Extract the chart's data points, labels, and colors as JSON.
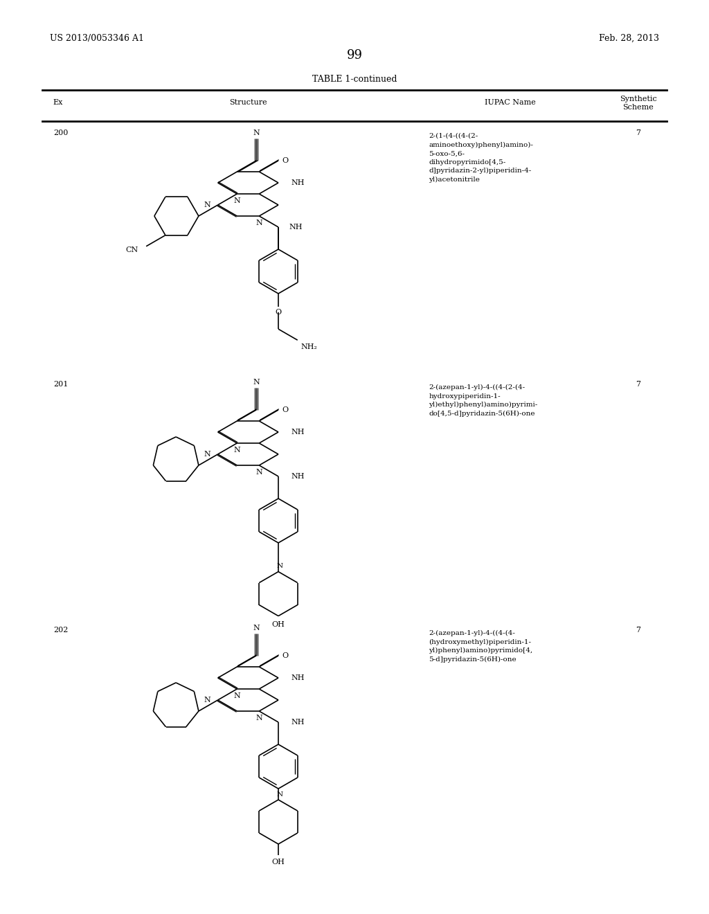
{
  "title": "TABLE 1-continued",
  "page_number": "99",
  "patent_left": "US 2013/0053346 A1",
  "patent_right": "Feb. 28, 2013",
  "background_color": "#ffffff",
  "text_color": "#000000",
  "rows": [
    {
      "ex": "200",
      "iupac": "2-(1-(4-((4-(2-\naminoethoxy)phenyl)amino)-\n5-oxo-5,6-\ndihydropyrimido[4,5-\nd]pyridazin-2-yl)piperidin-4-\nyl)acetonitrile",
      "scheme": "7"
    },
    {
      "ex": "201",
      "iupac": "2-(azepan-1-yl)-4-((4-(2-(4-\nhydroxypiperidin-1-\nyl)ethyl)phenyl)amino)pyrimi-\ndo[4,5-d]pyridazin-5(6H)-one",
      "scheme": "7"
    },
    {
      "ex": "202",
      "iupac": "2-(azepan-1-yl)-4-((4-(4-\n(hydroxymethyl)piperidin-1-\nyl)phenyl)amino)pyrimido[4,\n5-d]pyridazin-5(6H)-one",
      "scheme": "7"
    }
  ]
}
